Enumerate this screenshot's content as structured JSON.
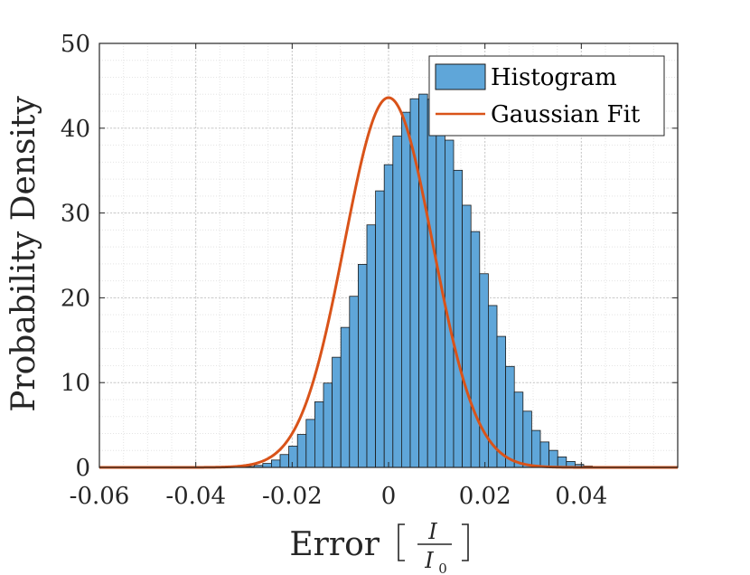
{
  "chart_data": {
    "type": "bar",
    "title": "",
    "xlabel": "Error",
    "xlabel_fraction": {
      "numerator": "I",
      "denominator": "I",
      "denominator_subscript": "0"
    },
    "ylabel": "Probability Density",
    "xlim": [
      -0.06,
      0.06
    ],
    "ylim": [
      0,
      50
    ],
    "xticks": [
      -0.06,
      -0.04,
      -0.02,
      0,
      0.02,
      0.04
    ],
    "xtick_labels": [
      "-0.06",
      "-0.04",
      "-0.02",
      "0",
      "0.02",
      "0.04"
    ],
    "yticks": [
      0,
      10,
      20,
      30,
      40,
      50
    ],
    "ytick_labels": [
      "0",
      "10",
      "20",
      "30",
      "40",
      "50"
    ],
    "grid": true,
    "minor_grid": true,
    "legend_position": "top-right",
    "series": [
      {
        "name": "Histogram",
        "kind": "histogram",
        "color": "#5fa6d9",
        "edge_color": "#1a1a1a",
        "bin_width": 0.0018,
        "bin_start": -0.0315,
        "values": [
          0.05,
          0.11,
          0.24,
          0.47,
          0.87,
          1.52,
          2.51,
          3.89,
          5.66,
          7.74,
          9.94,
          12.99,
          16.51,
          20.18,
          23.94,
          28.6,
          32.61,
          35.7,
          39.07,
          41.88,
          43.47,
          44.02,
          43.41,
          40.78,
          38.59,
          35.04,
          30.92,
          27.81,
          22.84,
          19.09,
          15.45,
          11.91,
          8.88,
          6.63,
          4.36,
          3.0,
          2.01,
          1.24,
          0.7,
          0.35,
          0.16,
          0.08
        ]
      },
      {
        "name": "Gaussian Fit",
        "kind": "line",
        "color": "#d95319",
        "mu": 0.0,
        "sigma": 0.00915,
        "peak": 43.6
      }
    ]
  }
}
